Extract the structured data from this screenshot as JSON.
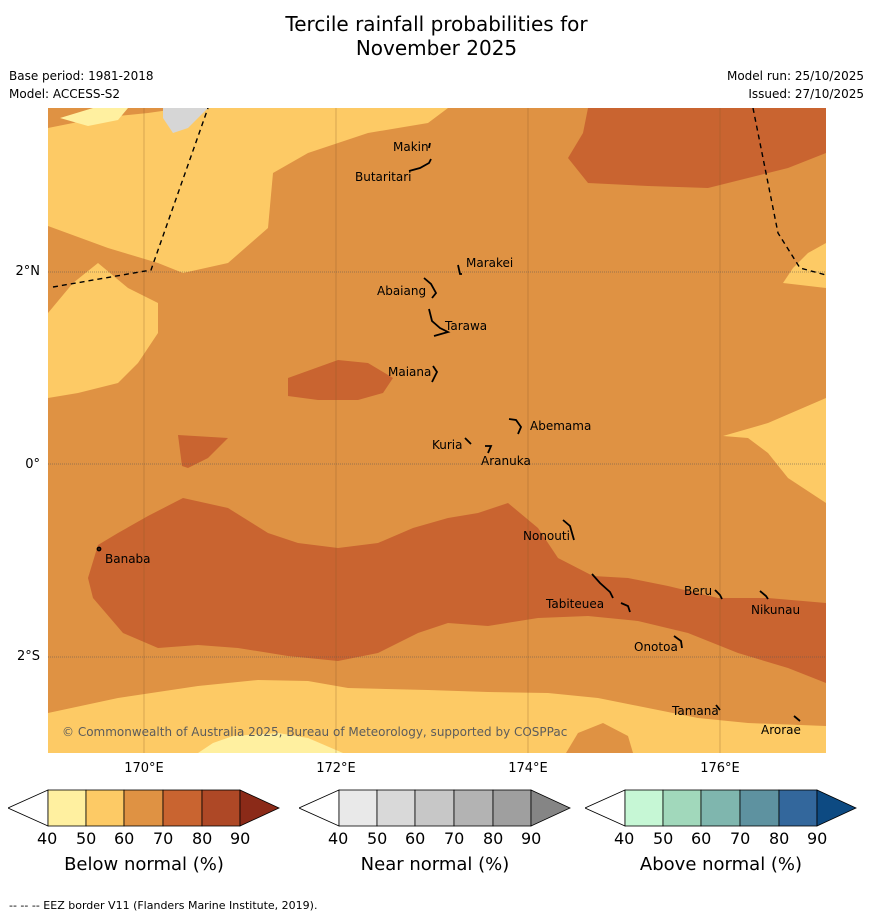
{
  "title": {
    "line1": "Tercile rainfall probabilities for",
    "line2": "November 2025"
  },
  "meta": {
    "base_period": "Base period: 1981-2018",
    "model": "Model: ACCESS-S2",
    "model_run": "Model run: 25/10/2025",
    "issued": "Issued: 27/10/2025"
  },
  "map": {
    "lat_labels": [
      "2°N",
      "0°",
      "2°S"
    ],
    "lon_labels": [
      "170°E",
      "172°E",
      "174°E",
      "176°E"
    ],
    "places": {
      "makin": "Makin",
      "butaritari": "Butaritari",
      "marakei": "Marakei",
      "abaiang": "Abaiang",
      "tarawa": "Tarawa",
      "maiana": "Maiana",
      "abemama": "Abemama",
      "kuria": "Kuria",
      "aranuka": "Aranuka",
      "nonouti": "Nonouti",
      "banaba": "Banaba",
      "beru": "Beru",
      "nikunau": "Nikunau",
      "tabiteuea": "Tabiteuea",
      "onotoa": "Onotoa",
      "tamana": "Tamana",
      "arorae": "Arorae"
    },
    "copyright": "© Commonwealth of Australia 2025, Bureau of Meteorology, supported by COSPPac",
    "colors": {
      "below_40": "#fff0a0",
      "below_50": "#fdca65",
      "below_60": "#df9243",
      "below_70": "#c96430",
      "below_80": "#ae4826",
      "below_90": "#8b2a18",
      "near_cmap": [
        "#e9e9e9",
        "#d9d9d9",
        "#c7c7c7",
        "#b3b3b3",
        "#9f9f9f",
        "#858585"
      ],
      "above_cmap": [
        "#c6f7d5",
        "#a1d8bb",
        "#7fb6ae",
        "#5e92a0",
        "#33679c",
        "#0d4a82"
      ]
    }
  },
  "colorbars": {
    "ticks": [
      "40",
      "50",
      "60",
      "70",
      "80",
      "90"
    ],
    "below_caption": "Below normal (%)",
    "near_caption": "Near normal (%)",
    "above_caption": "Above normal (%)"
  },
  "footer": "--  --  -- EEZ border V11 (Flanders Marine Institute, 2019)."
}
